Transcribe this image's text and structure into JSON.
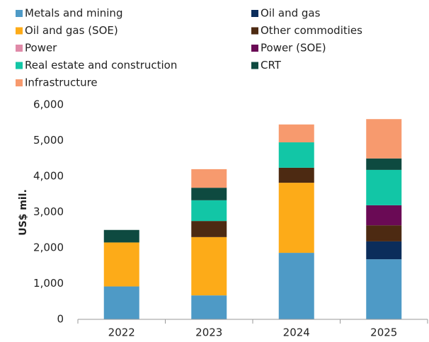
{
  "chart_data": {
    "type": "stacked_bar",
    "y_label": "US$ mil.",
    "categories": [
      "2022",
      "2023",
      "2024",
      "2025"
    ],
    "series": [
      {
        "name": "Metals and mining",
        "color": "#4e9ac6",
        "values": [
          920,
          670,
          1860,
          1680
        ]
      },
      {
        "name": "Oil and gas",
        "color": "#0b2d5b",
        "values": [
          0,
          0,
          0,
          500
        ]
      },
      {
        "name": "Oil and gas (SOE)",
        "color": "#fdab18",
        "values": [
          1230,
          1630,
          1960,
          0
        ]
      },
      {
        "name": "Other commodities",
        "color": "#4d2a12",
        "values": [
          0,
          450,
          420,
          450
        ]
      },
      {
        "name": "Power",
        "color": "#e08aa8",
        "values": [
          0,
          0,
          0,
          0
        ]
      },
      {
        "name": "Power (SOE)",
        "color": "#6a0a55",
        "values": [
          0,
          0,
          0,
          560
        ]
      },
      {
        "name": "Real estate and construction",
        "color": "#12c6a6",
        "values": [
          0,
          580,
          710,
          990
        ]
      },
      {
        "name": "CRT",
        "color": "#0e4a40",
        "values": [
          350,
          350,
          0,
          320
        ]
      },
      {
        "name": "Infrastructure",
        "color": "#f79a6e",
        "values": [
          0,
          520,
          500,
          1100
        ]
      }
    ],
    "ylim": [
      0,
      6000
    ],
    "yticks": [
      0,
      {
        "value": 1000,
        "label": "1,000"
      },
      {
        "value": 2000,
        "label": "2,000"
      },
      {
        "value": 3000,
        "label": "3,000"
      },
      {
        "value": 4000,
        "label": "4,000"
      },
      {
        "value": 5000,
        "label": "5,000"
      },
      {
        "value": 6000,
        "label": "6,000"
      }
    ]
  }
}
